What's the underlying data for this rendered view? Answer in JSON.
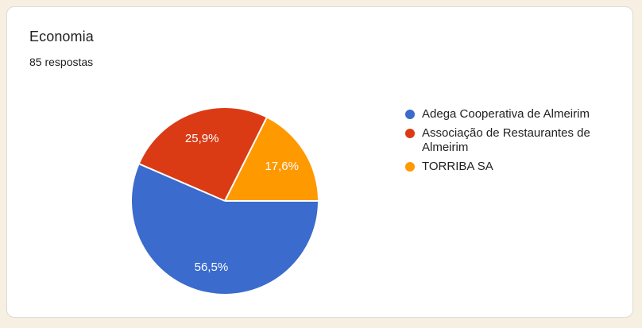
{
  "card": {
    "title": "Economia",
    "subtitle": "85 respostas"
  },
  "theme": {
    "page_background": "#F6EFE2",
    "card_background": "#FFFFFF",
    "text_color": "#202124",
    "slice_label_color": "#FFFFFF",
    "separator_color": "#FFFFFF"
  },
  "chart_data": {
    "type": "pie",
    "title": "Economia",
    "subtitle": "85 respostas",
    "legend_position": "right",
    "start_angle_deg": 0,
    "direction": "clockwise",
    "slices": [
      {
        "label": "Adega Cooperativa de Almeirim",
        "value": 56.5,
        "display": "56,5%",
        "color": "#3A6BCD"
      },
      {
        "label": "Associação de Restaurantes de Almeirim",
        "value": 25.9,
        "display": "25,9%",
        "color": "#DA3B15"
      },
      {
        "label": "TORRIBA SA",
        "value": 17.6,
        "display": "17,6%",
        "color": "#FF9900"
      }
    ]
  }
}
